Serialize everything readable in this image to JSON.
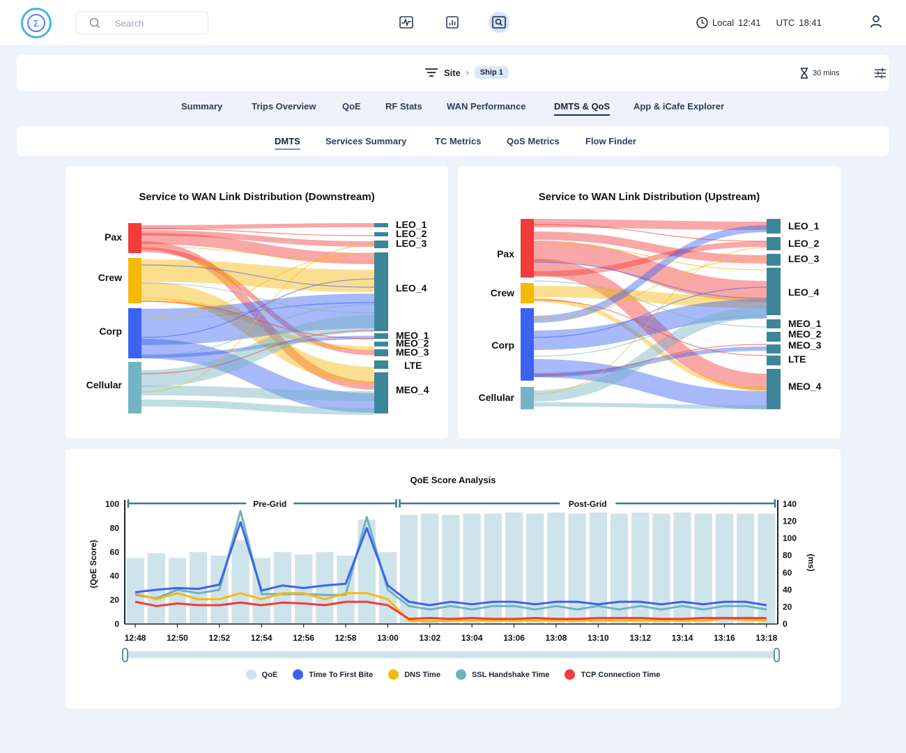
{
  "header": {
    "search_placeholder": "Search",
    "nav_icons": [
      "activity-icon",
      "bar-chart-icon",
      "search-window-icon"
    ],
    "local_label": "Local",
    "local_time": "12:41",
    "utc_label": "UTC",
    "utc_time": "18:41"
  },
  "filter": {
    "site_label": "Site",
    "ship_label": "Ship 1",
    "time_range": "30 mins"
  },
  "tabs": [
    "Summary",
    "Trips Overview",
    "QoE",
    "RF Stats",
    "WAN Performance",
    "DMTS & QoS",
    "App & iCafe Explorer"
  ],
  "active_tab": "DMTS & QoS",
  "subtabs": [
    "DMTS",
    "Services Summary",
    "TC Metrics",
    "QoS Metrics",
    "Flow Finder"
  ],
  "active_subtab": "DMTS",
  "colors": {
    "pax": "#f23b3b",
    "crew": "#f6b90a",
    "corp": "#3b63f0",
    "cellular": "#73b4c4",
    "wan_node": "#3d8599",
    "qoe_bar": "#cfe3ea",
    "ssl": "#6fb2c2",
    "axis": "#3d7a8c"
  },
  "sankey_down": {
    "title": "Service to WAN Link Distribution (Downstream)",
    "sources": [
      "Pax",
      "Crew",
      "Corp",
      "Cellular"
    ],
    "targets": [
      "LEO_1",
      "LEO_2",
      "LEO_3",
      "LEO_4",
      "MEO_1",
      "MEO_2",
      "MEO_3",
      "LTE",
      "MEO_4"
    ]
  },
  "sankey_up": {
    "title": "Service to WAN Link Distribution (Upstream)",
    "sources": [
      "Pax",
      "Crew",
      "Corp",
      "Cellular"
    ],
    "targets": [
      "LEO_1",
      "LEO_2",
      "LEO_3",
      "LEO_4",
      "MEO_1",
      "MEO_2",
      "MEO_3",
      "LTE",
      "MEO_4"
    ]
  },
  "qoe_chart": {
    "title": "QoE Score Analysis",
    "y_left_label": "(QoE Score)",
    "y_right_label": "(ms)",
    "pre_label": "Pre-Grid",
    "post_label": "Post-Grid",
    "y_left_ticks": [
      "100",
      "80",
      "60",
      "40",
      "20",
      "0"
    ],
    "y_right_ticks": [
      "140",
      "120",
      "100",
      "80",
      "60",
      "40",
      "20",
      "0"
    ],
    "x_ticks": [
      "12:48",
      "12:50",
      "12:52",
      "12:54",
      "12:56",
      "12:58",
      "13:00",
      "13:02",
      "13:04",
      "13:06",
      "13:08",
      "13:10",
      "13:12",
      "13:14",
      "13:16",
      "13:18"
    ],
    "legend": [
      {
        "label": "QoE",
        "color": "#cfe3ea"
      },
      {
        "label": "Time To First Bite",
        "color": "#3b63f0"
      },
      {
        "label": "DNS Time",
        "color": "#f6b90a"
      },
      {
        "label": "SSL Handshake Time",
        "color": "#6fb2c2"
      },
      {
        "label": "TCP Connection Time",
        "color": "#f23b3b"
      }
    ]
  },
  "chart_data": {
    "type": "bar",
    "title": "QoE Score Analysis",
    "xlabel": "",
    "ylabel": "(QoE Score)",
    "y2label": "(ms)",
    "ylim": [
      0,
      100
    ],
    "y2lim": [
      0,
      140
    ],
    "x": [
      "12:48",
      "12:49",
      "12:50",
      "12:51",
      "12:52",
      "12:53",
      "12:54",
      "12:55",
      "12:56",
      "12:57",
      "12:58",
      "12:59",
      "13:00",
      "13:01",
      "13:02",
      "13:03",
      "13:04",
      "13:05",
      "13:06",
      "13:07",
      "13:08",
      "13:09",
      "13:10",
      "13:11",
      "13:12",
      "13:13",
      "13:14",
      "13:15",
      "13:16",
      "13:17",
      "13:18"
    ],
    "series": [
      {
        "name": "QoE",
        "axis": "left",
        "kind": "bar",
        "values": [
          55,
          59,
          55,
          60,
          57,
          70,
          55,
          60,
          58,
          60,
          57,
          87,
          60,
          91,
          92,
          91,
          92,
          92,
          93,
          92,
          93,
          92,
          93,
          92,
          93,
          92,
          93,
          92,
          92,
          92,
          92
        ]
      },
      {
        "name": "Time To First Bite",
        "axis": "right",
        "kind": "line",
        "values": [
          37,
          40,
          42,
          41,
          46,
          119,
          39,
          45,
          42,
          45,
          47,
          112,
          45,
          26,
          22,
          26,
          23,
          26,
          26,
          23,
          26,
          26,
          23,
          26,
          26,
          23,
          26,
          23,
          26,
          26,
          22
        ]
      },
      {
        "name": "DNS Time",
        "axis": "right",
        "kind": "line",
        "values": [
          36,
          29,
          36,
          29,
          29,
          36,
          29,
          36,
          36,
          29,
          36,
          36,
          29,
          4,
          3,
          4,
          4,
          4,
          4,
          4,
          4,
          4,
          4,
          4,
          4,
          4,
          4,
          4,
          6,
          5,
          4
        ]
      },
      {
        "name": "SSL Handshake Time",
        "axis": "right",
        "kind": "line",
        "values": [
          34,
          30,
          40,
          36,
          40,
          132,
          35,
          35,
          35,
          34,
          34,
          125,
          40,
          21,
          17,
          21,
          17,
          21,
          21,
          17,
          21,
          17,
          21,
          17,
          21,
          17,
          21,
          17,
          21,
          21,
          17
        ]
      },
      {
        "name": "TCP Connection Time",
        "axis": "right",
        "kind": "line",
        "values": [
          26,
          21,
          24,
          22,
          22,
          25,
          22,
          25,
          24,
          22,
          26,
          26,
          22,
          6,
          7,
          6,
          7,
          6,
          6,
          7,
          6,
          6,
          7,
          7,
          7,
          6,
          6,
          7,
          7,
          7,
          7
        ]
      }
    ],
    "pre_grid": [
      "12:48",
      "13:00"
    ],
    "post_grid": [
      "13:00",
      "13:18"
    ],
    "legend_position": "bottom",
    "grid": false
  }
}
